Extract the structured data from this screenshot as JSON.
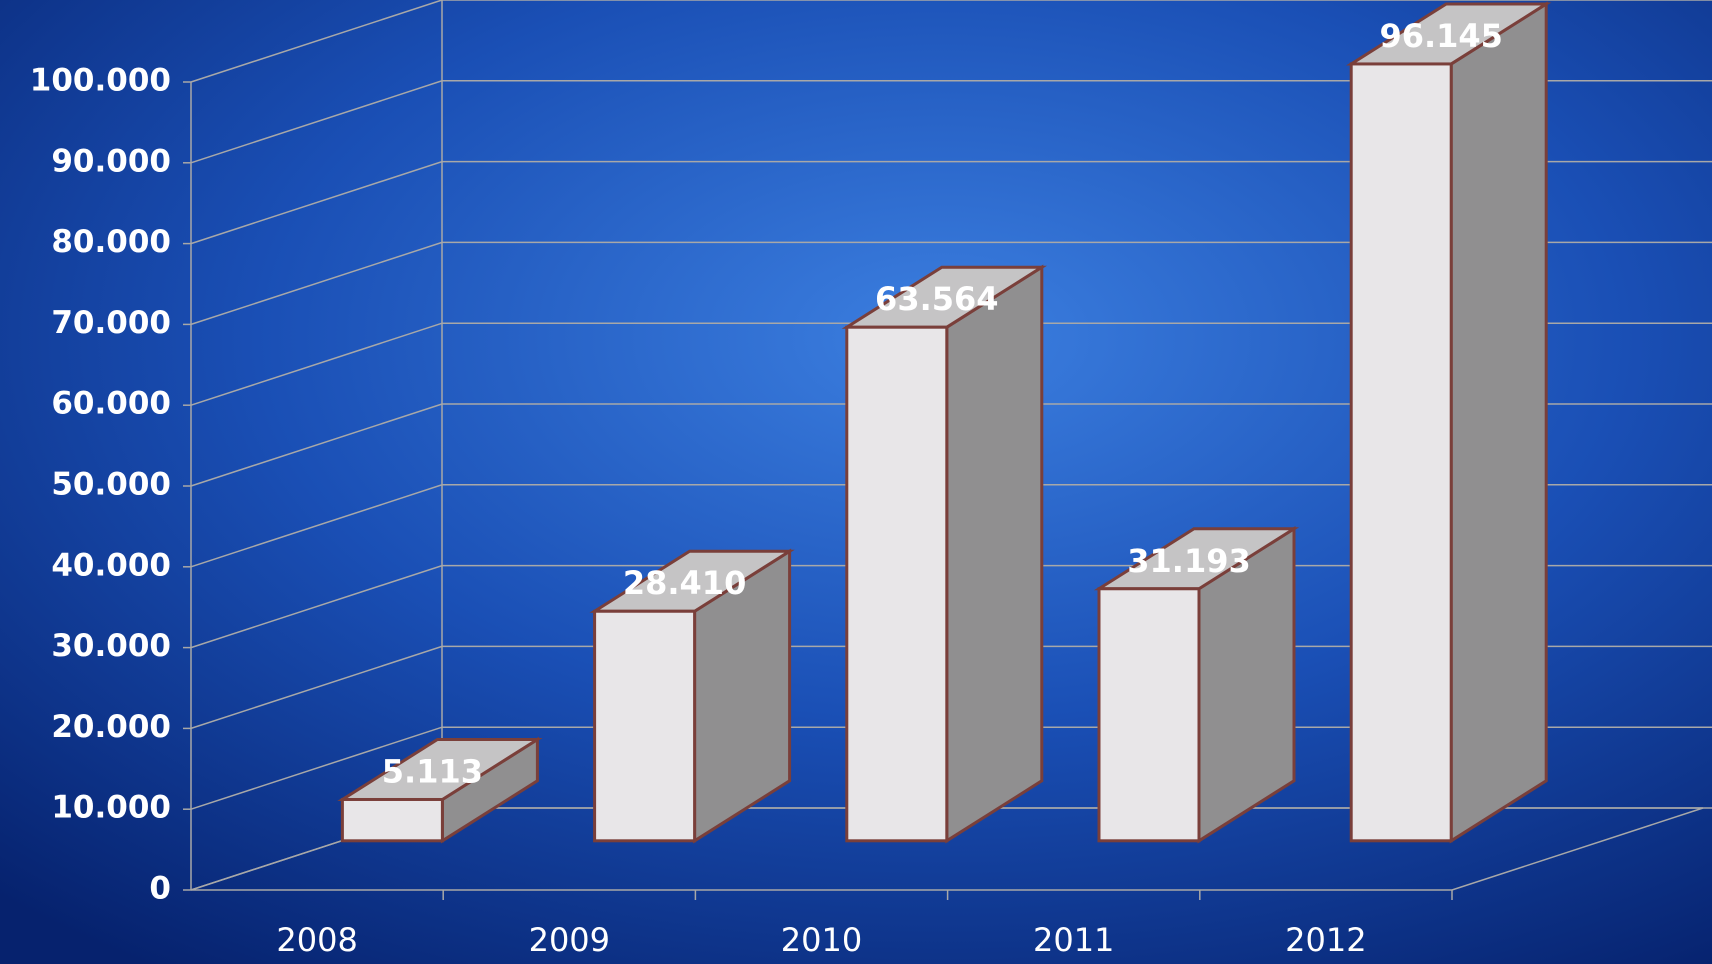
{
  "chart_data": {
    "type": "bar3d",
    "categories": [
      "2008",
      "2009",
      "2010",
      "2011",
      "2012"
    ],
    "values": [
      5113,
      28410,
      63564,
      31193,
      96145
    ],
    "value_labels": [
      "5.113",
      "28.410",
      "63.564",
      "31.193",
      "96.145"
    ],
    "color": "#e8e6e8",
    "ylim": [
      0,
      100000
    ],
    "yticks": [
      0,
      {
        "value": 10000,
        "label": "10.000"
      },
      {
        "value": 20000,
        "label": "20.000"
      },
      {
        "value": 30000,
        "label": "30.000"
      },
      {
        "value": 40000,
        "label": "40.000"
      },
      {
        "value": 50000,
        "label": "50.000"
      },
      {
        "value": 60000,
        "label": "60.000"
      },
      {
        "value": 70000,
        "label": "70.000"
      },
      {
        "value": 80000,
        "label": "80.000"
      },
      {
        "value": 90000,
        "label": "90.000"
      },
      {
        "value": 100000,
        "label": "100.000"
      }
    ],
    "grid": true
  }
}
